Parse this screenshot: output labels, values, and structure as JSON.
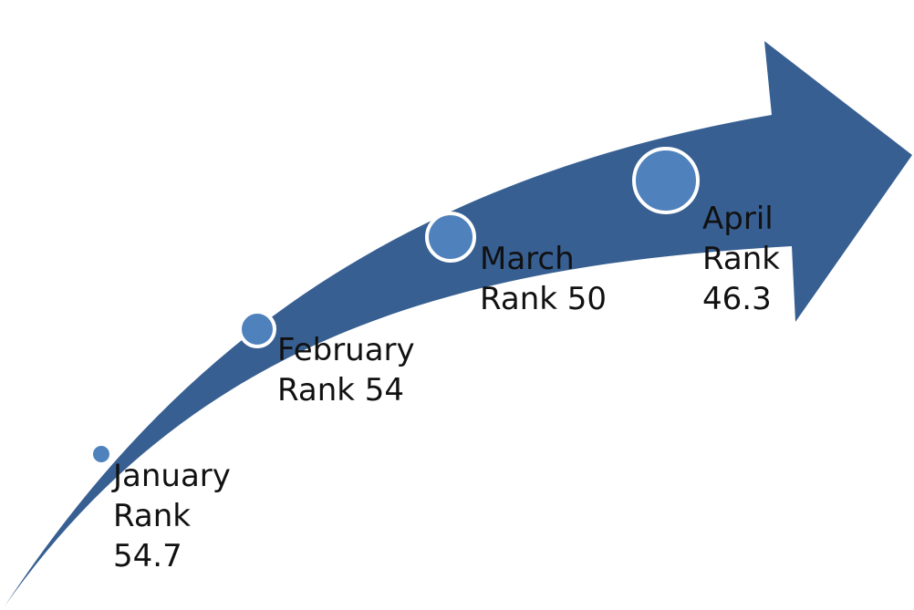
{
  "colors": {
    "arrow_fill": "#375F92",
    "marker_fill": "#4F81BD",
    "marker_stroke": "#FFFFFF",
    "label_text": "#111111",
    "background": "#FFFFFF"
  },
  "milestones": [
    {
      "month": "January",
      "rank_label": "Rank",
      "rank_value": "54.7"
    },
    {
      "month": "February",
      "rank_label": "Rank 54"
    },
    {
      "month": "March",
      "rank_label": "Rank 50"
    },
    {
      "month": "April",
      "rank_label": "Rank",
      "rank_value": "46.3"
    }
  ]
}
